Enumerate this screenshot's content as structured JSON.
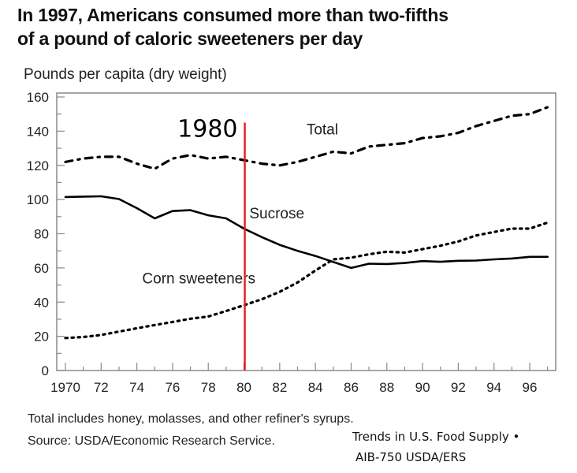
{
  "header": {
    "title_line1": "In 1997, Americans consumed more than two-fifths",
    "title_line2": "of a pound of caloric sweeteners per day",
    "subtitle": "Pounds per capita (dry weight)"
  },
  "footer": {
    "note": "Total includes honey, molasses, and other refiner's syrups.",
    "source": "Source:  USDA/Economic Research Service.",
    "credit_line1": "Trends in U.S. Food Supply •",
    "credit_line2": "AIB-750 USDA/ERS"
  },
  "chart_data": {
    "type": "line",
    "title": "In 1997, Americans consumed more than two-fifths of a pound of caloric sweeteners per day",
    "ylabel": "Pounds per capita (dry weight)",
    "xlabel": "",
    "xlim": [
      1970,
      1997
    ],
    "ylim": [
      0,
      160
    ],
    "yticks": [
      0,
      20,
      40,
      60,
      80,
      100,
      120,
      140,
      160
    ],
    "xticks": [
      1970,
      1972,
      1974,
      1976,
      1978,
      1980,
      1982,
      1984,
      1986,
      1988,
      1990,
      1992,
      1994,
      1996
    ],
    "xtick_labels": [
      "1970",
      "72",
      "74",
      "76",
      "78",
      "80",
      "82",
      "84",
      "86",
      "88",
      "90",
      "92",
      "94",
      "96"
    ],
    "grid": false,
    "x": [
      1970,
      1971,
      1972,
      1973,
      1974,
      1975,
      1976,
      1977,
      1978,
      1979,
      1980,
      1981,
      1982,
      1983,
      1984,
      1985,
      1986,
      1987,
      1988,
      1989,
      1990,
      1991,
      1992,
      1993,
      1994,
      1995,
      1996,
      1997
    ],
    "series": [
      {
        "name": "Total",
        "style": "dash-dot",
        "label_position": [
          1983.5,
          138
        ],
        "values": [
          122,
          124,
          125,
          125,
          121,
          118,
          124,
          126,
          124,
          125,
          123,
          121,
          120,
          122,
          125,
          128,
          127,
          131,
          132,
          133,
          136,
          137,
          139,
          143,
          146,
          149,
          150,
          154
        ]
      },
      {
        "name": "Sucrose",
        "style": "solid",
        "label_position": [
          1980.3,
          89
        ],
        "values": [
          101.5,
          101.7,
          101.9,
          100.3,
          95,
          89,
          93.3,
          93.8,
          90.8,
          89,
          83,
          78,
          73.5,
          70,
          67,
          63.5,
          60,
          62.5,
          62.3,
          62.9,
          64,
          63.6,
          64.2,
          64.3,
          65,
          65.5,
          66.5,
          66.5
        ]
      },
      {
        "name": "Corn sweeteners",
        "style": "dotted",
        "label_position": [
          1974.3,
          51
        ],
        "values": [
          19,
          19.6,
          20.8,
          22.8,
          24.7,
          26.6,
          28.4,
          30.3,
          31.6,
          34.8,
          38.2,
          41.7,
          46,
          51.5,
          58.5,
          65,
          66,
          68,
          69.5,
          69,
          71,
          73,
          75.5,
          79,
          81,
          83,
          83,
          86.5
        ]
      }
    ],
    "annotations": [
      {
        "type": "vertical-line",
        "x": 1980,
        "color": "#e8181e",
        "label": "1980",
        "from_y": 0,
        "to_y": 145
      }
    ]
  }
}
